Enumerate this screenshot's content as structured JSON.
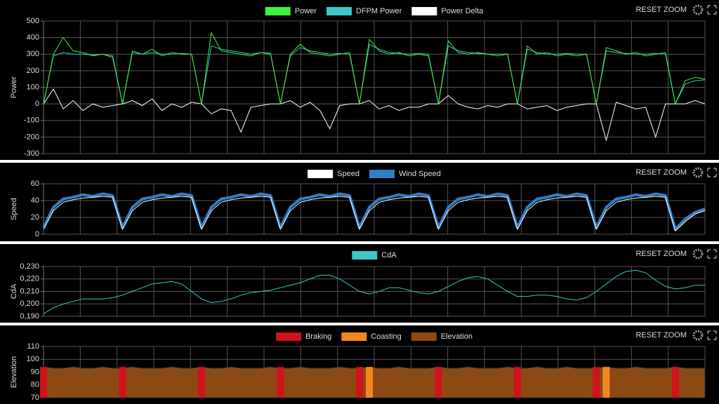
{
  "chart_data": [
    {
      "type": "line",
      "ylabel": "Power",
      "ylabel_color": "#3ef03e",
      "button": "RESET ZOOM",
      "ylim": [
        -300,
        500
      ],
      "yticks": [
        -300,
        -200,
        -100,
        0,
        100,
        200,
        300,
        400,
        500
      ],
      "grid": true,
      "series": [
        {
          "name": "Power",
          "color": "#3ef03e",
          "style": "line",
          "values": [
            0,
            300,
            400,
            320,
            310,
            290,
            300,
            280,
            0,
            320,
            300,
            330,
            290,
            310,
            300,
            300,
            0,
            430,
            320,
            310,
            300,
            290,
            310,
            300,
            0,
            300,
            360,
            310,
            300,
            290,
            300,
            310,
            0,
            390,
            320,
            300,
            310,
            290,
            300,
            290,
            0,
            380,
            310,
            300,
            310,
            300,
            290,
            300,
            0,
            350,
            300,
            310,
            290,
            300,
            290,
            300,
            0,
            340,
            320,
            300,
            310,
            290,
            300,
            310,
            0,
            140,
            160,
            150
          ]
        },
        {
          "name": "DFPM Power",
          "color": "#3cc8c8",
          "style": "line",
          "values": [
            0,
            290,
            310,
            300,
            300,
            295,
            300,
            290,
            0,
            310,
            300,
            310,
            300,
            300,
            305,
            300,
            0,
            350,
            330,
            320,
            310,
            300,
            310,
            305,
            0,
            290,
            340,
            320,
            310,
            300,
            305,
            300,
            0,
            360,
            330,
            310,
            305,
            300,
            305,
            300,
            0,
            350,
            320,
            310,
            305,
            300,
            300,
            300,
            0,
            330,
            310,
            300,
            300,
            305,
            300,
            300,
            0,
            320,
            310,
            305,
            300,
            300,
            305,
            300,
            0,
            120,
            140,
            145
          ]
        },
        {
          "name": "Power Delta",
          "color": "#ffffff",
          "style": "line",
          "values": [
            0,
            90,
            -30,
            20,
            -40,
            0,
            -20,
            -10,
            0,
            20,
            -10,
            30,
            -40,
            0,
            -20,
            10,
            0,
            -60,
            -30,
            -40,
            -170,
            -20,
            -10,
            0,
            0,
            20,
            -20,
            10,
            -40,
            -150,
            -10,
            0,
            0,
            20,
            -30,
            -10,
            -40,
            -20,
            -20,
            0,
            0,
            50,
            0,
            -20,
            -30,
            -10,
            -20,
            0,
            0,
            -30,
            -20,
            -10,
            -40,
            -20,
            -10,
            0,
            0,
            -220,
            10,
            -10,
            -30,
            -20,
            -200,
            0,
            0,
            0,
            20,
            0
          ]
        }
      ]
    },
    {
      "type": "line",
      "ylabel": "Speed",
      "ylabel_color": "#ffffff",
      "button": "RESET ZOOM",
      "ylim": [
        0,
        60
      ],
      "yticks": [
        0,
        20,
        40,
        60
      ],
      "grid": true,
      "series": [
        {
          "name": "Speed",
          "color": "#ffffff",
          "style": "line",
          "values": [
            6,
            28,
            38,
            41,
            43,
            44,
            45,
            44,
            6,
            28,
            38,
            41,
            43,
            44,
            45,
            44,
            6,
            28,
            38,
            41,
            43,
            44,
            45,
            44,
            6,
            28,
            38,
            41,
            43,
            44,
            45,
            44,
            6,
            28,
            38,
            41,
            43,
            44,
            45,
            44,
            6,
            28,
            38,
            41,
            43,
            44,
            45,
            44,
            6,
            28,
            38,
            41,
            43,
            44,
            45,
            44,
            6,
            28,
            38,
            41,
            43,
            44,
            45,
            44,
            4,
            15,
            24,
            28
          ]
        },
        {
          "name": "Wind Speed",
          "color": "#2f7fc8",
          "style": "band",
          "values": [
            8,
            32,
            42,
            44,
            47,
            45,
            48,
            46,
            8,
            32,
            42,
            44,
            47,
            45,
            48,
            46,
            8,
            32,
            42,
            44,
            47,
            45,
            48,
            46,
            8,
            32,
            42,
            44,
            47,
            45,
            48,
            46,
            8,
            32,
            42,
            44,
            47,
            45,
            48,
            46,
            8,
            32,
            42,
            44,
            47,
            45,
            48,
            46,
            8,
            32,
            42,
            44,
            47,
            45,
            48,
            46,
            8,
            32,
            42,
            44,
            47,
            45,
            48,
            46,
            6,
            18,
            26,
            30
          ]
        }
      ]
    },
    {
      "type": "line",
      "ylabel": "CdA",
      "ylabel_color": "#3cc8c8",
      "button": "RESET ZOOM",
      "ylim": [
        0.19,
        0.23
      ],
      "yticks": [
        {
          "value": 0.19,
          "label": "0,190"
        },
        {
          "value": 0.2,
          "label": "0,200"
        },
        {
          "value": 0.21,
          "label": "0,210"
        },
        {
          "value": 0.22,
          "label": "0,220"
        },
        {
          "value": 0.23,
          "label": "0,230"
        }
      ],
      "grid": true,
      "series": [
        {
          "name": "CdA",
          "color": "#3cc8c8",
          "style": "line",
          "values": [
            0.192,
            0.197,
            0.2,
            0.202,
            0.204,
            0.204,
            0.204,
            0.205,
            0.207,
            0.21,
            0.213,
            0.216,
            0.217,
            0.218,
            0.216,
            0.21,
            0.204,
            0.201,
            0.202,
            0.204,
            0.207,
            0.209,
            0.21,
            0.211,
            0.213,
            0.215,
            0.217,
            0.22,
            0.223,
            0.223,
            0.22,
            0.215,
            0.21,
            0.208,
            0.21,
            0.213,
            0.213,
            0.211,
            0.209,
            0.208,
            0.21,
            0.214,
            0.218,
            0.221,
            0.222,
            0.22,
            0.215,
            0.21,
            0.206,
            0.206,
            0.207,
            0.207,
            0.206,
            0.204,
            0.203,
            0.205,
            0.21,
            0.216,
            0.222,
            0.226,
            0.227,
            0.225,
            0.219,
            0.214,
            0.212,
            0.213,
            0.215,
            0.215
          ]
        }
      ]
    },
    {
      "type": "area",
      "ylabel": "Elevation",
      "ylabel_color": "#8b4a14",
      "button": "RESET ZOOM",
      "ylim": [
        70,
        110
      ],
      "yticks": [
        70,
        80,
        90,
        100,
        110
      ],
      "grid": true,
      "series": [
        {
          "name": "Braking",
          "color": "#d0121b",
          "style": "bar",
          "values": [
            94,
            null,
            null,
            null,
            null,
            null,
            null,
            null,
            94,
            null,
            null,
            null,
            null,
            null,
            null,
            null,
            94,
            null,
            null,
            null,
            null,
            null,
            null,
            null,
            94,
            null,
            null,
            null,
            null,
            null,
            null,
            null,
            94,
            null,
            null,
            null,
            null,
            null,
            null,
            null,
            94,
            null,
            null,
            null,
            null,
            null,
            null,
            null,
            94,
            null,
            null,
            null,
            null,
            null,
            null,
            null,
            94,
            null,
            null,
            null,
            null,
            null,
            null,
            null,
            94,
            null,
            null,
            null
          ]
        },
        {
          "name": "Coasting",
          "color": "#f5861f",
          "style": "bar",
          "values": [
            null,
            null,
            null,
            null,
            null,
            null,
            null,
            null,
            null,
            null,
            null,
            null,
            null,
            null,
            null,
            null,
            null,
            null,
            null,
            null,
            null,
            null,
            null,
            null,
            null,
            null,
            null,
            null,
            null,
            null,
            null,
            null,
            null,
            94,
            null,
            null,
            null,
            null,
            null,
            null,
            null,
            null,
            null,
            null,
            null,
            null,
            null,
            null,
            null,
            null,
            null,
            null,
            null,
            null,
            null,
            null,
            null,
            94,
            null,
            null,
            null,
            null,
            null,
            null,
            null,
            null,
            null,
            null
          ]
        },
        {
          "name": "Elevation",
          "color": "#8b4a14",
          "style": "area",
          "values": [
            94,
            93,
            93,
            94,
            93,
            93,
            94,
            93,
            93,
            94,
            93,
            93,
            93,
            94,
            93,
            93,
            94,
            93,
            93,
            94,
            93,
            93,
            93,
            94,
            93,
            93,
            94,
            93,
            93,
            93,
            94,
            93,
            93,
            94,
            93,
            93,
            94,
            93,
            93,
            93,
            94,
            93,
            93,
            94,
            93,
            93,
            93,
            94,
            93,
            93,
            94,
            93,
            93,
            94,
            93,
            93,
            93,
            94,
            93,
            93,
            94,
            93,
            93,
            93,
            94,
            93,
            93,
            93
          ]
        }
      ]
    }
  ]
}
